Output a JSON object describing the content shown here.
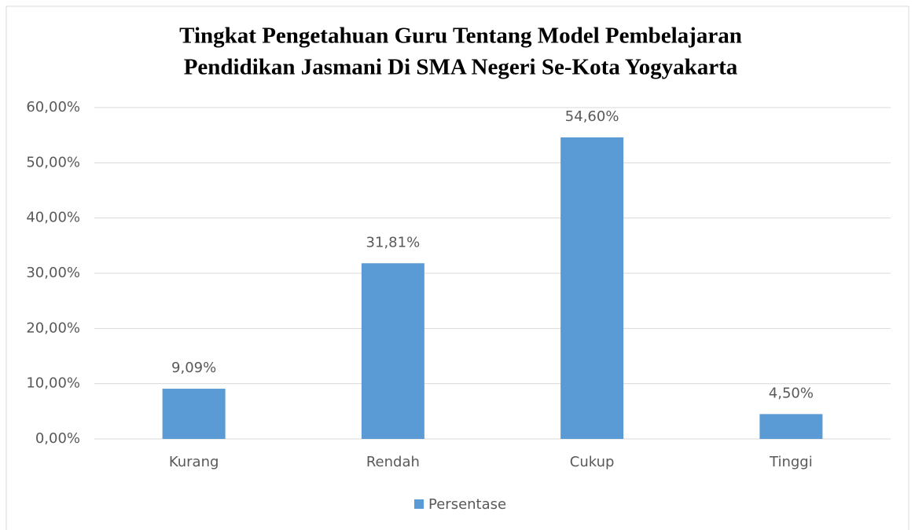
{
  "chart_data": {
    "type": "bar",
    "title": [
      "Tingkat Pengetahuan Guru Tentang Model Pembelajaran",
      "Pendidikan Jasmani Di SMA Negeri Se-Kota Yogyakarta"
    ],
    "categories": [
      "Kurang",
      "Rendah",
      "Cukup",
      "Tinggi"
    ],
    "series": [
      {
        "name": "Persentase",
        "color": "#5b9bd5",
        "values": [
          9.09,
          31.81,
          54.6,
          4.5
        ],
        "value_labels": [
          "9,09%",
          "31,81%",
          "54,60%",
          "4,50%"
        ]
      }
    ],
    "ylim": [
      0,
      60
    ],
    "yticks": [
      {
        "value": 0,
        "label": "0,00%"
      },
      {
        "value": 10,
        "label": "10,00%"
      },
      {
        "value": 20,
        "label": "20,00%"
      },
      {
        "value": 30,
        "label": "30,00%"
      },
      {
        "value": 40,
        "label": "40,00%"
      },
      {
        "value": 50,
        "label": "50,00%"
      },
      {
        "value": 60,
        "label": "60,00%"
      }
    ],
    "grid": true,
    "legend": "bottom"
  }
}
